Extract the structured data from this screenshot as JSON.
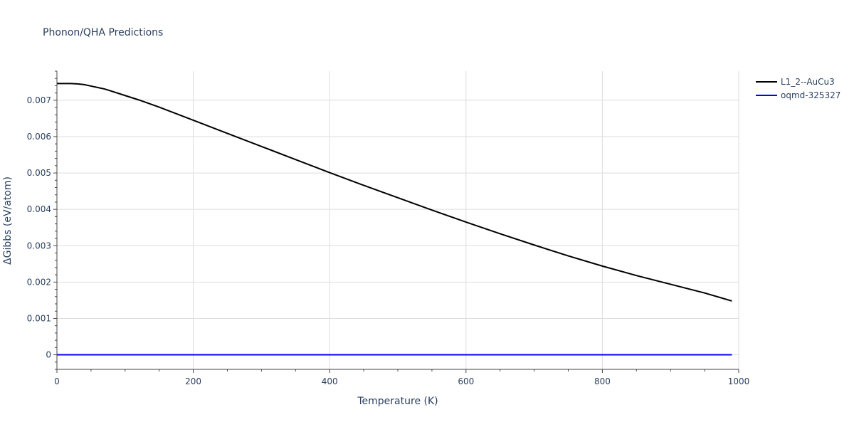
{
  "chart_data": {
    "type": "line",
    "title": "Phonon/QHA Predictions",
    "xlabel": "Temperature (K)",
    "ylabel": "ΔGibbs (eV/atom)",
    "xlim": [
      0,
      1000
    ],
    "ylim": [
      -0.0004,
      0.0078
    ],
    "xticks": [
      0,
      200,
      400,
      600,
      800,
      1000
    ],
    "xtick_labels": [
      "0",
      "200",
      "400",
      "600",
      "800",
      "1000"
    ],
    "yticks": [
      0,
      0.001,
      0.002,
      0.003,
      0.004,
      0.005,
      0.006,
      0.007
    ],
    "ytick_labels": [
      "0",
      "0.001",
      "0.002",
      "0.003",
      "0.004",
      "0.005",
      "0.006",
      "0.007"
    ],
    "grid": true,
    "legend_position": "top-right",
    "series": [
      {
        "name": "L1_2--AuCu3",
        "color": "#000000",
        "x": [
          0,
          10,
          20,
          30,
          40,
          50,
          60,
          70,
          80,
          100,
          120,
          150,
          200,
          250,
          300,
          350,
          400,
          450,
          500,
          550,
          600,
          650,
          700,
          750,
          800,
          850,
          900,
          950,
          990
        ],
        "y": [
          0.00746,
          0.00746,
          0.00746,
          0.00745,
          0.00743,
          0.00739,
          0.00735,
          0.00731,
          0.00725,
          0.00713,
          0.00701,
          0.00681,
          0.00645,
          0.00609,
          0.00573,
          0.00537,
          0.00501,
          0.00466,
          0.00432,
          0.00398,
          0.00365,
          0.00333,
          0.00302,
          0.00272,
          0.00244,
          0.00218,
          0.00194,
          0.0017,
          0.00148
        ]
      },
      {
        "name": "oqmd-325327",
        "color": "#0000ff",
        "x": [
          0,
          990
        ],
        "y": [
          0,
          0
        ]
      }
    ]
  }
}
